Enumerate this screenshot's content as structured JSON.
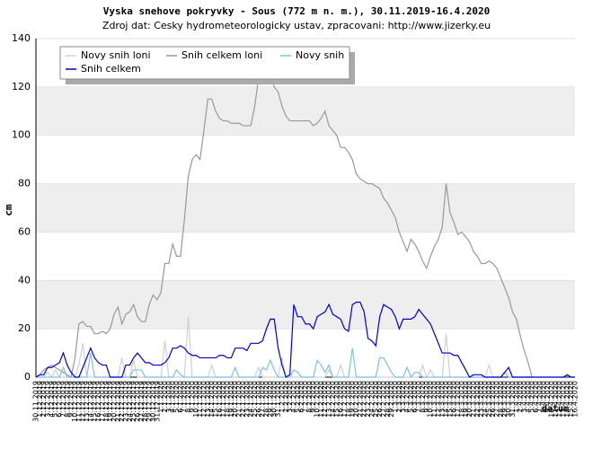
{
  "chart_data": {
    "type": "line",
    "title": "Vyska snehove pokryvky - Sous (772 m n. m.), 30.11.2019-16.4.2020",
    "subtitle": "Zdroj dat: Cesky hydrometeorologicky ustav, zpracovani: http://www.jizerky.eu",
    "x_label": "datum",
    "y_label": "cm",
    "ylim": [
      0,
      140
    ],
    "yticks": [
      0,
      20,
      40,
      60,
      80,
      100,
      120,
      140
    ],
    "grid": true,
    "legend": "top-left",
    "categories": [
      "30.11.2019",
      "1.12.2019",
      "2.12.2019",
      "3.12.2019",
      "4.12.2019",
      "5.12.2019",
      "6.12.2019",
      "7.12.2019",
      "8.12.2019",
      "9.12.2019",
      "10.12.2019",
      "11.12.2019",
      "12.12.2019",
      "13.12.2019",
      "14.12.2019",
      "15.12.2019",
      "16.12.2019",
      "17.12.2019",
      "18.12.2019",
      "19.12.2019",
      "20.12.2019",
      "21.12.2019",
      "22.12.2019",
      "23.12.2019",
      "24.12.2019",
      "25.12.2019",
      "26.12.2019",
      "27.12.2019",
      "28.12.2019",
      "29.12.2019",
      "30.12.2019",
      "31.12.2019",
      "1.1.2020",
      "2.1.2020",
      "3.1.2020",
      "4.1.2020",
      "5.1.2020",
      "6.1.2020",
      "7.1.2020",
      "8.1.2020",
      "9.1.2020",
      "10.1.2020",
      "11.1.2020",
      "12.1.2020",
      "13.1.2020",
      "14.1.2020",
      "15.1.2020",
      "16.1.2020",
      "17.1.2020",
      "18.1.2020",
      "19.1.2020",
      "20.1.2020",
      "21.1.2020",
      "22.1.2020",
      "23.1.2020",
      "24.1.2020",
      "25.1.2020",
      "26.1.2020",
      "27.1.2020",
      "28.1.2020",
      "29.1.2020",
      "30.1.2020",
      "31.1.2020",
      "1.2.2020",
      "2.2.2020",
      "3.2.2020",
      "4.2.2020",
      "5.2.2020",
      "6.2.2020",
      "7.2.2020",
      "8.2.2020",
      "9.2.2020",
      "10.2.2020",
      "11.2.2020",
      "12.2.2020",
      "13.2.2020",
      "14.2.2020",
      "15.2.2020",
      "16.2.2020",
      "17.2.2020",
      "18.2.2020",
      "19.2.2020",
      "20.2.2020",
      "21.2.2020",
      "22.2.2020",
      "23.2.2020",
      "24.2.2020",
      "25.2.2020",
      "26.2.2020",
      "27.2.2020",
      "28.2.2020",
      "29.2.2020",
      "1.3.2020",
      "2.3.2020",
      "3.3.2020",
      "4.3.2020",
      "5.3.2020",
      "6.3.2020",
      "7.3.2020",
      "8.3.2020",
      "9.3.2020",
      "10.3.2020",
      "11.3.2020",
      "12.3.2020",
      "13.3.2020",
      "14.3.2020",
      "15.3.2020",
      "16.3.2020",
      "17.3.2020",
      "18.3.2020",
      "19.3.2020",
      "20.3.2020",
      "21.3.2020",
      "22.3.2020",
      "23.3.2020",
      "24.3.2020",
      "25.3.2020",
      "26.3.2020",
      "27.3.2020",
      "28.3.2020",
      "29.3.2020",
      "30.3.2020",
      "31.3.2020",
      "1.4.2020",
      "2.4.2020",
      "3.4.2020",
      "4.4.2020",
      "5.4.2020",
      "6.4.2020",
      "7.4.2020",
      "8.4.2020",
      "9.4.2020",
      "10.4.2020",
      "11.4.2020",
      "12.4.2020",
      "13.4.2020",
      "14.4.2020",
      "15.4.2020",
      "16.4.2020"
    ],
    "series": [
      {
        "name": "Novy snih loni",
        "color": "#d0d0d0",
        "values": [
          0,
          0,
          0,
          2,
          0,
          3,
          0,
          0,
          0,
          0,
          0,
          5,
          14,
          0,
          0,
          0,
          0,
          0,
          0,
          0,
          0,
          0,
          8,
          0,
          0,
          7,
          0,
          0,
          0,
          0,
          0,
          0,
          0,
          15,
          0,
          0,
          0,
          0,
          0,
          25,
          0,
          0,
          0,
          0,
          0,
          5,
          0,
          0,
          0,
          0,
          0,
          0,
          0,
          0,
          0,
          0,
          0,
          4,
          0,
          0,
          0,
          0,
          0,
          8,
          0,
          0,
          0,
          0,
          0,
          0,
          0,
          0,
          0,
          0,
          0,
          3,
          0,
          0,
          5,
          0,
          0,
          0,
          0,
          0,
          0,
          0,
          0,
          0,
          0,
          0,
          0,
          0,
          0,
          0,
          0,
          0,
          0,
          0,
          0,
          5,
          0,
          3,
          0,
          0,
          0,
          18,
          0,
          0,
          0,
          0,
          0,
          0,
          0,
          0,
          0,
          0,
          5,
          0,
          0,
          0,
          2,
          0,
          0,
          0,
          0,
          0,
          0,
          0,
          null,
          null,
          null,
          null,
          null,
          null,
          null,
          null,
          null,
          null,
          null
        ]
      },
      {
        "name": "Snih celkem loni",
        "color": "#999999",
        "values": [
          0,
          1,
          3,
          4,
          5,
          4,
          3,
          2,
          1,
          0,
          8,
          22,
          23,
          21,
          21,
          18,
          18,
          19,
          18,
          20,
          26,
          29,
          22,
          26,
          27,
          30,
          25,
          23,
          23,
          30,
          34,
          32,
          35,
          47,
          47,
          55,
          50,
          50,
          65,
          83,
          90,
          92,
          90,
          102,
          115,
          115,
          110,
          107,
          106,
          106,
          105,
          105,
          105,
          104,
          104,
          104,
          112,
          124,
          125,
          125,
          124,
          120,
          118,
          112,
          108,
          106,
          106,
          106,
          106,
          106,
          106,
          104,
          105,
          107,
          110,
          104,
          102,
          100,
          95,
          95,
          93,
          90,
          84,
          82,
          81,
          80,
          80,
          79,
          78,
          74,
          72,
          69,
          66,
          60,
          56,
          52,
          57,
          55,
          52,
          48,
          45,
          50,
          54,
          57,
          62,
          80,
          68,
          64,
          59,
          60,
          58,
          56,
          52,
          50,
          47,
          47,
          48,
          47,
          45,
          41,
          37,
          33,
          27,
          24,
          17,
          11,
          6,
          0,
          null,
          null,
          null,
          null,
          null,
          null,
          null,
          null,
          null,
          null,
          null
        ]
      },
      {
        "name": "Novy snih",
        "color": "#7ec0ee",
        "values": [
          0,
          0,
          0,
          0,
          0,
          0,
          0,
          4,
          0,
          0,
          0,
          0,
          0,
          0,
          10,
          0,
          0,
          0,
          0,
          0,
          0,
          0,
          0,
          0,
          0,
          3,
          3,
          3,
          0,
          0,
          0,
          0,
          0,
          0,
          0,
          0,
          3,
          1,
          0,
          0,
          0,
          0,
          0,
          0,
          0,
          0,
          0,
          0,
          0,
          0,
          0,
          4,
          0,
          0,
          0,
          0,
          0,
          0,
          4,
          3,
          7,
          3,
          0,
          0,
          0,
          0,
          3,
          2,
          0,
          0,
          0,
          0,
          7,
          5,
          2,
          5,
          0,
          0,
          0,
          0,
          0,
          12,
          0,
          0,
          0,
          0,
          0,
          0,
          8,
          8,
          5,
          2,
          0,
          0,
          0,
          4,
          0,
          2,
          2,
          0,
          0,
          0,
          0,
          0,
          0,
          0,
          0,
          0,
          0,
          0,
          0,
          0,
          0,
          0,
          0,
          0,
          0,
          0,
          0,
          0,
          2,
          0,
          0,
          0,
          0,
          0,
          0,
          0,
          0,
          0,
          0,
          0,
          0,
          0,
          0,
          0,
          1,
          0,
          0
        ]
      },
      {
        "name": "Snih celkem",
        "color": "#0000cc",
        "values": [
          0,
          1,
          1,
          4,
          4,
          5,
          6,
          10,
          5,
          2,
          0,
          0,
          4,
          8,
          12,
          8,
          6,
          5,
          5,
          0,
          0,
          0,
          0,
          5,
          5,
          8,
          10,
          8,
          6,
          6,
          5,
          5,
          5,
          6,
          8,
          12,
          12,
          13,
          12,
          10,
          9,
          9,
          8,
          8,
          8,
          8,
          8,
          9,
          9,
          8,
          8,
          12,
          12,
          12,
          11,
          14,
          14,
          14,
          15,
          20,
          24,
          24,
          12,
          5,
          0,
          1,
          30,
          25,
          25,
          22,
          22,
          20,
          25,
          26,
          27,
          30,
          26,
          25,
          24,
          20,
          19,
          30,
          31,
          31,
          27,
          16,
          15,
          13,
          25,
          30,
          29,
          28,
          25,
          20,
          24,
          24,
          24,
          25,
          28,
          26,
          24,
          22,
          18,
          14,
          10,
          10,
          10,
          9,
          9,
          6,
          3,
          0,
          1,
          1,
          1,
          0,
          0,
          0,
          0,
          0,
          2,
          4,
          0,
          0,
          0,
          0,
          0,
          0,
          0,
          0,
          0,
          0,
          0,
          0,
          0,
          0,
          1,
          0,
          0
        ]
      }
    ]
  }
}
